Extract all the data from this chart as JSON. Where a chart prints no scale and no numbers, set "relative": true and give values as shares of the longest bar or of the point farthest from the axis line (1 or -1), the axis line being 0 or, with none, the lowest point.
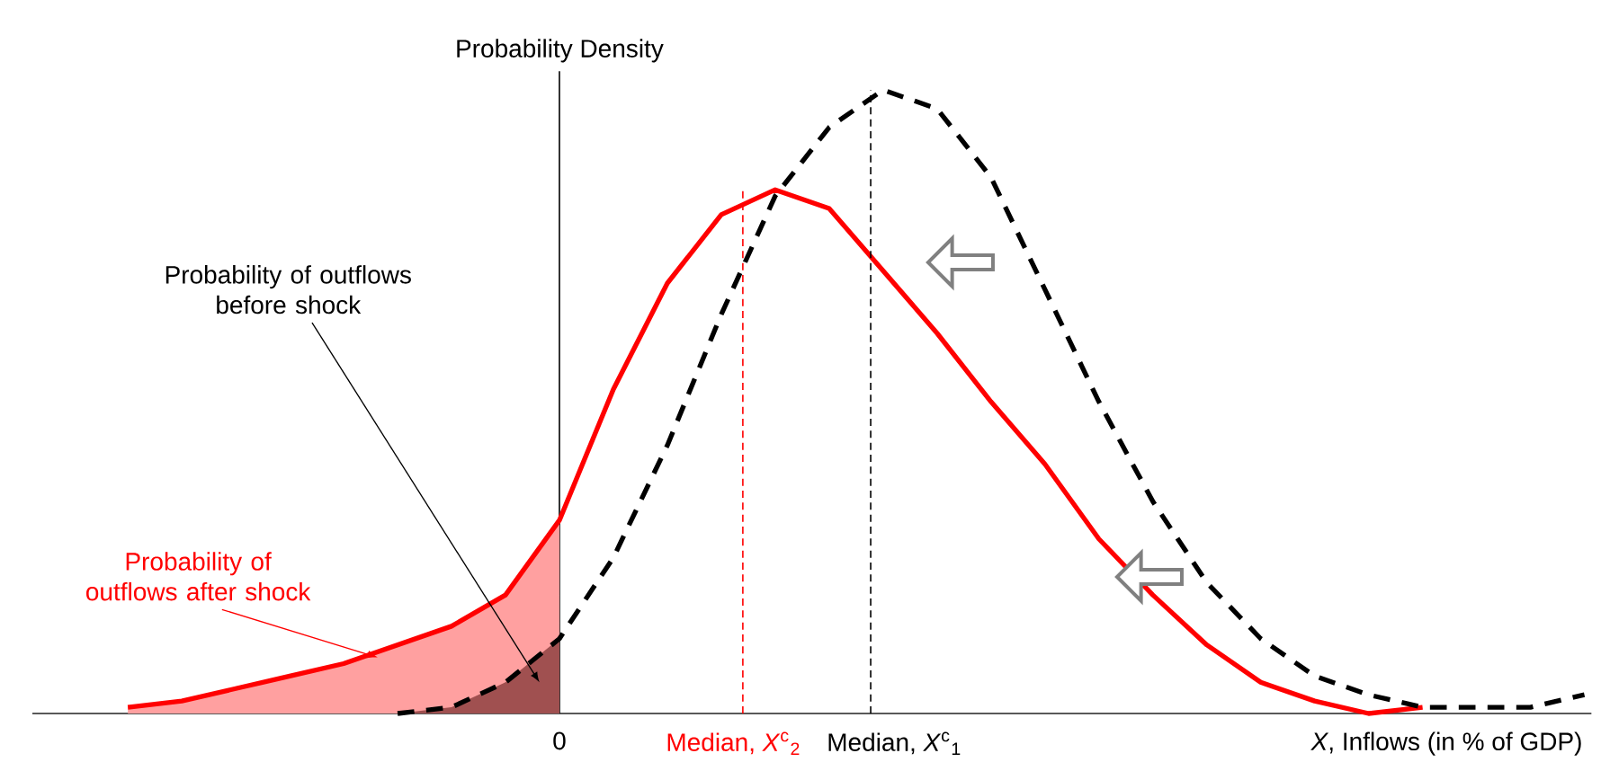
{
  "chart_data": {
    "type": "line",
    "relative": true,
    "ylabel": "Probability Density",
    "xlabel": "*X*, Inflows (in % of GDP)",
    "categories": [
      null,
      null,
      null,
      null,
      null,
      null,
      null,
      null,
      null,
      null,
      null,
      null,
      null,
      null,
      null,
      null,
      null,
      null,
      null,
      null,
      null,
      null,
      null,
      null,
      null,
      null,
      null,
      null,
      null
    ],
    "series": [
      {
        "type": "area",
        "color": "#ffa0a0",
        "values": [
          null,
          0.01,
          0.02,
          0.04,
          0.06,
          0.08,
          0.11,
          0.14,
          0.19,
          0.31,
          null,
          null,
          null,
          null,
          null,
          null,
          null,
          null,
          null,
          null,
          null,
          null,
          null,
          null,
          null,
          null,
          null,
          null,
          null
        ]
      },
      {
        "type": "area",
        "color": "#a05050",
        "values": [
          null,
          null,
          null,
          null,
          null,
          null,
          0.0,
          0.01,
          0.05,
          0.12,
          null,
          null,
          null,
          null,
          null,
          null,
          null,
          null,
          null,
          null,
          null,
          null,
          null,
          null,
          null,
          null,
          null,
          null,
          null
        ]
      },
      {
        "color": "#ff0000",
        "line_style": "solid",
        "values": [
          null,
          0.01,
          0.02,
          0.04,
          0.06,
          0.08,
          0.11,
          0.14,
          0.19,
          0.31,
          0.52,
          0.69,
          0.8,
          0.84,
          0.81,
          0.71,
          0.61,
          0.5,
          0.4,
          0.28,
          0.19,
          0.11,
          0.05,
          0.02,
          0.0,
          0.01,
          null,
          null,
          null
        ]
      },
      {
        "color": "#000000",
        "line_style": "dashed",
        "values": [
          null,
          null,
          null,
          null,
          null,
          null,
          0.0,
          0.01,
          0.05,
          0.12,
          0.25,
          0.43,
          0.64,
          0.83,
          0.94,
          1.0,
          0.97,
          0.86,
          0.68,
          0.5,
          0.34,
          0.21,
          0.12,
          0.06,
          0.03,
          0.01,
          0.01,
          0.01,
          0.03
        ]
      }
    ],
    "annotations": [
      "Probability of outflows before shock",
      "Probability of outflows after shock",
      "0",
      "Median, *X*$^{c}$$_{2}$",
      "Median, *X*$^{c}$$_{1}$"
    ]
  }
}
